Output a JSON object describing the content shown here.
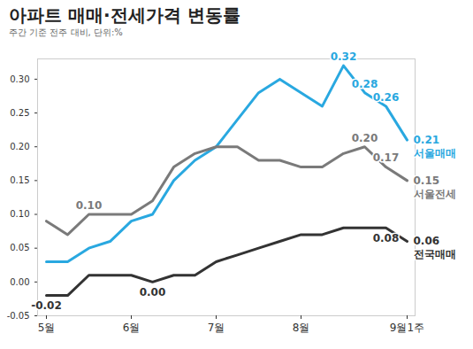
{
  "chart_data": {
    "type": "line",
    "title": "아파트 매매·전세가격 변동률",
    "subtitle": "주간 기준 전주 대비, 단위:%",
    "categories": [
      "5월",
      null,
      null,
      null,
      "6월",
      null,
      null,
      null,
      "7월",
      null,
      null,
      null,
      "8월",
      null,
      null,
      null,
      null,
      "9월1주"
    ],
    "ylim": [
      -0.05,
      0.33
    ],
    "yticks": [
      {
        "value": -0.05,
        "label": "-0.05"
      },
      {
        "value": 0,
        "label": "0.00"
      },
      {
        "value": 0.05,
        "label": "0.05"
      },
      {
        "value": 0.1,
        "label": "0.10"
      },
      {
        "value": 0.15,
        "label": "0.15"
      },
      {
        "value": 0.2,
        "label": "0.20"
      },
      {
        "value": 0.25,
        "label": "0.25"
      },
      {
        "value": 0.3,
        "label": "0.30"
      }
    ],
    "grid": false,
    "data_labels": true,
    "series": [
      {
        "name": "서울매매",
        "color": "#29a8e0",
        "values": [
          0.03,
          0.03,
          0.05,
          0.06,
          0.09,
          0.1,
          0.15,
          0.18,
          0.2,
          0.24,
          0.28,
          0.3,
          0.28,
          0.26,
          0.32,
          0.28,
          0.26,
          0.21
        ],
        "value_labels": [
          null,
          null,
          null,
          null,
          null,
          null,
          null,
          null,
          null,
          null,
          null,
          null,
          null,
          null,
          "0.32",
          "0.28",
          "0.26",
          "0.21"
        ]
      },
      {
        "name": "서울전세",
        "color": "#7a7a7a",
        "values": [
          0.09,
          0.07,
          0.1,
          0.1,
          0.1,
          0.12,
          0.17,
          0.19,
          0.2,
          0.2,
          0.18,
          0.18,
          0.17,
          0.17,
          0.19,
          0.2,
          0.17,
          0.15
        ],
        "value_labels": [
          null,
          null,
          "0.10",
          null,
          null,
          null,
          null,
          null,
          null,
          null,
          null,
          null,
          null,
          null,
          null,
          "0.20",
          "0.17",
          "0.15"
        ]
      },
      {
        "name": "전국매매",
        "color": "#333333",
        "values": [
          -0.02,
          -0.02,
          0.01,
          0.01,
          0.01,
          0.0,
          0.01,
          0.01,
          0.03,
          0.04,
          0.05,
          0.06,
          0.07,
          0.07,
          0.08,
          0.08,
          0.08,
          0.06
        ],
        "value_labels": [
          "-0.02",
          null,
          null,
          null,
          null,
          "0.00",
          null,
          null,
          null,
          null,
          null,
          null,
          null,
          null,
          null,
          null,
          "0.08",
          "0.06"
        ]
      }
    ]
  }
}
